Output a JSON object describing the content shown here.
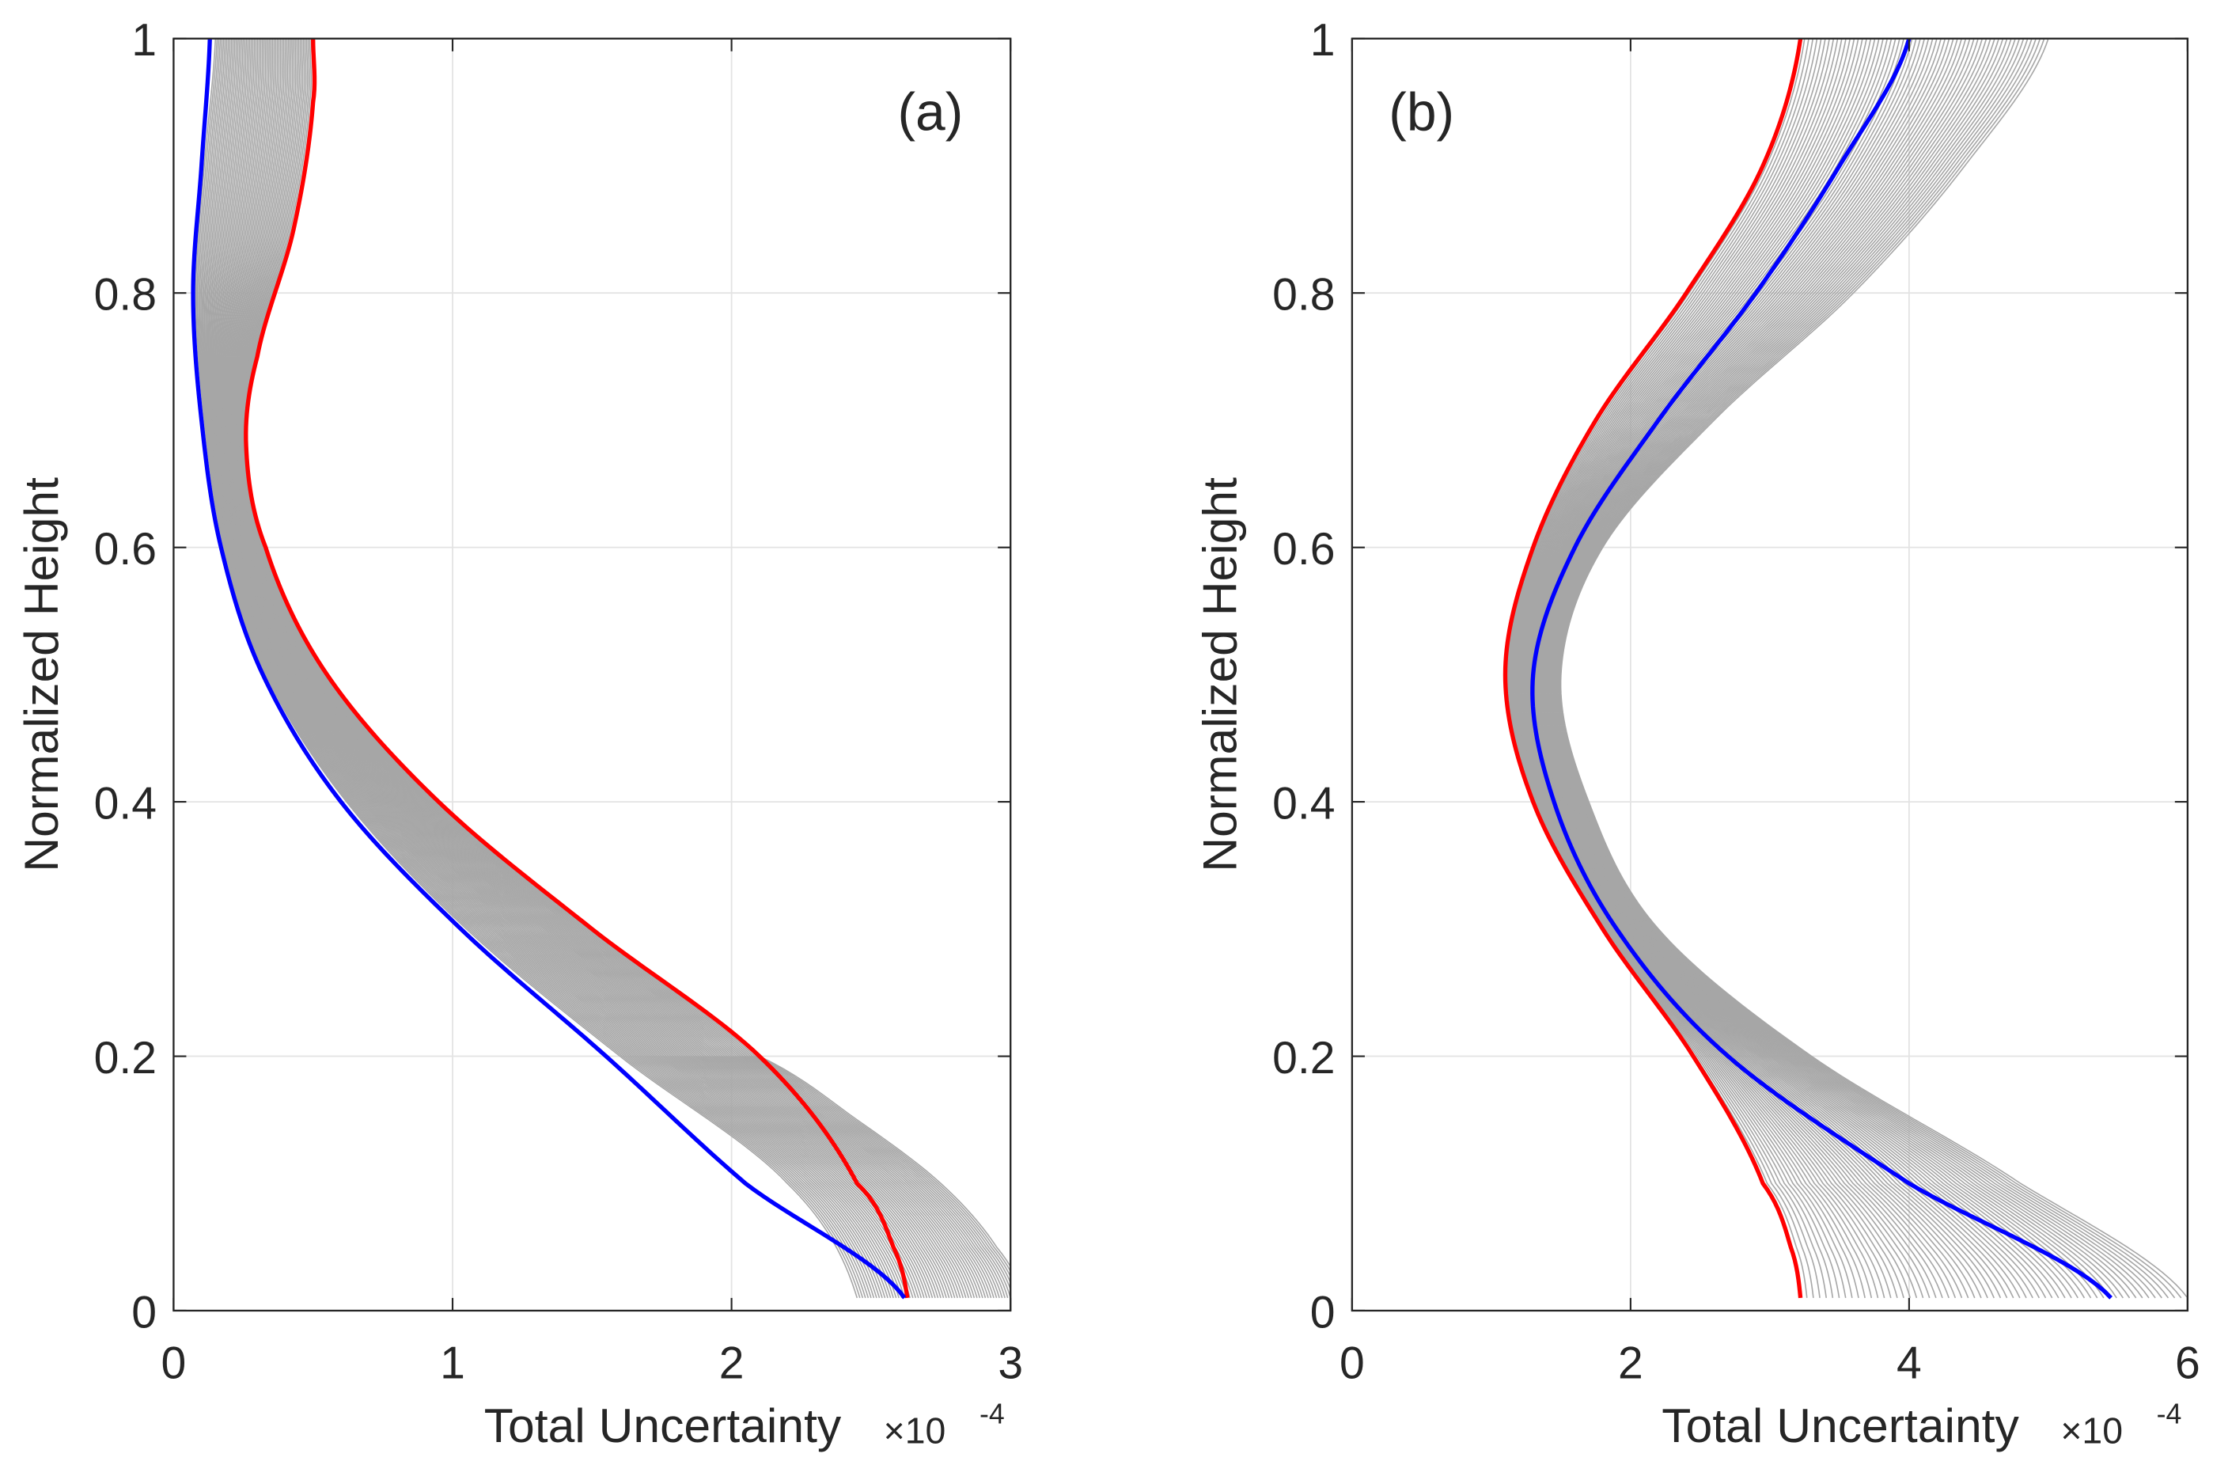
{
  "chart_data": [
    {
      "type": "line",
      "panel_label": "(a)",
      "xlabel": "Total Uncertainty",
      "x_exponent_label": "×10",
      "x_exponent": "-4",
      "ylabel": "Normalized Height",
      "xlim": [
        0,
        3
      ],
      "ylim": [
        0,
        1
      ],
      "xticks": [
        "0",
        "1",
        "2",
        "3"
      ],
      "yticks": [
        "0",
        "0.2",
        "0.4",
        "0.6",
        "0.8",
        "1"
      ],
      "grid": true,
      "colors": {
        "red": "#ff0000",
        "blue": "#0000ff",
        "gray": "#a6a6a6"
      },
      "series": [
        {
          "name": "red",
          "y": [
            0.01,
            0.05,
            0.1,
            0.2,
            0.3,
            0.4,
            0.5,
            0.6,
            0.68,
            0.75,
            0.85,
            0.95,
            1.0
          ],
          "x": [
            2.63,
            2.58,
            2.45,
            2.1,
            1.5,
            0.95,
            0.55,
            0.33,
            0.26,
            0.3,
            0.43,
            0.5,
            0.5
          ]
        },
        {
          "name": "blue",
          "y": [
            0.01,
            0.1,
            0.2,
            0.3,
            0.4,
            0.5,
            0.6,
            0.7,
            0.8,
            0.9,
            1.0
          ],
          "x": [
            2.62,
            2.05,
            1.55,
            1.03,
            0.6,
            0.32,
            0.17,
            0.1,
            0.07,
            0.1,
            0.13
          ]
        },
        {
          "name": "gray-inner",
          "y": [
            0.01,
            0.1,
            0.2,
            0.3,
            0.4,
            0.5,
            0.6,
            0.7,
            0.8,
            0.9,
            1.0
          ],
          "x": [
            2.45,
            2.2,
            1.6,
            1.05,
            0.62,
            0.33,
            0.18,
            0.11,
            0.08,
            0.11,
            0.15
          ]
        },
        {
          "name": "gray-outer",
          "y": [
            0.01,
            0.05,
            0.1,
            0.15,
            0.2,
            0.3,
            0.4,
            0.5,
            0.6,
            0.68,
            0.75,
            0.85,
            0.95,
            1.0
          ],
          "x": [
            3.05,
            2.95,
            2.75,
            2.45,
            2.1,
            1.5,
            0.95,
            0.55,
            0.33,
            0.26,
            0.3,
            0.43,
            0.5,
            0.5
          ]
        }
      ]
    },
    {
      "type": "line",
      "panel_label": "(b)",
      "xlabel": "Total Uncertainty",
      "x_exponent_label": "×10",
      "x_exponent": "-4",
      "ylabel": "Normalized Height",
      "xlim": [
        0,
        6
      ],
      "ylim": [
        0,
        1
      ],
      "xticks": [
        "0",
        "2",
        "4",
        "6"
      ],
      "yticks": [
        "0",
        "0.2",
        "0.4",
        "0.6",
        "0.8",
        "1"
      ],
      "grid": true,
      "colors": {
        "red": "#ff0000",
        "blue": "#0000ff",
        "gray": "#a6a6a6"
      },
      "series": [
        {
          "name": "red",
          "y": [
            0.01,
            0.05,
            0.1,
            0.2,
            0.3,
            0.4,
            0.5,
            0.6,
            0.7,
            0.8,
            0.9,
            1.0
          ],
          "x": [
            3.22,
            3.15,
            2.95,
            2.45,
            1.8,
            1.3,
            1.1,
            1.3,
            1.75,
            2.4,
            2.95,
            3.22
          ]
        },
        {
          "name": "blue",
          "y": [
            0.01,
            0.1,
            0.2,
            0.3,
            0.4,
            0.5,
            0.6,
            0.7,
            0.8,
            0.9,
            1.0
          ],
          "x": [
            5.45,
            4.0,
            2.7,
            1.9,
            1.45,
            1.3,
            1.6,
            2.2,
            2.9,
            3.5,
            4.0
          ]
        },
        {
          "name": "gray-inner",
          "y": [
            0.01,
            0.05,
            0.1,
            0.2,
            0.3,
            0.4,
            0.5,
            0.6,
            0.7,
            0.8,
            0.9,
            1.0
          ],
          "x": [
            3.22,
            3.15,
            2.95,
            2.45,
            1.8,
            1.3,
            1.1,
            1.3,
            1.75,
            2.4,
            2.95,
            3.22
          ]
        },
        {
          "name": "gray-outer",
          "y": [
            0.01,
            0.1,
            0.2,
            0.3,
            0.4,
            0.5,
            0.6,
            0.7,
            0.8,
            0.9,
            1.0
          ],
          "x": [
            6.0,
            4.8,
            3.3,
            2.2,
            1.7,
            1.5,
            1.8,
            2.6,
            3.6,
            4.4,
            5.0
          ]
        }
      ]
    }
  ]
}
